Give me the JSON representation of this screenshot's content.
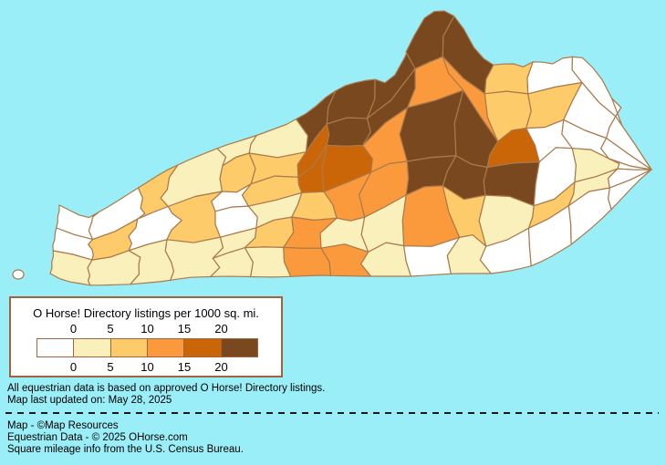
{
  "background_color": "#9AEEF7",
  "map": {
    "county_border_color": "#AA7A4C",
    "class_colors": [
      "#FFFFFF",
      "#FAF0BC",
      "#FDCB69",
      "#FB9A3C",
      "#CB6608",
      "#7A481E"
    ],
    "class_bounds": [
      "0",
      "0-5",
      "5-10",
      "10-15",
      "15-20",
      "20+"
    ],
    "density_grid_columns": [
      {
        "span": 2,
        "values": [
          0,
          0,
          1
        ]
      },
      {
        "span": 2,
        "values": [
          0,
          2,
          1
        ]
      },
      {
        "span": 2,
        "values": [
          2,
          0,
          1
        ]
      },
      {
        "span": 2,
        "values": [
          1,
          2,
          1
        ]
      },
      {
        "span": 1,
        "values": [
          1,
          2,
          0,
          0,
          1,
          1
        ]
      },
      {
        "span": 1,
        "values": [
          1,
          2,
          2,
          1,
          2,
          1
        ]
      },
      {
        "span": 1,
        "values": [
          5,
          4,
          4,
          2,
          3,
          3
        ]
      },
      {
        "span": 1,
        "values": [
          5,
          5,
          4,
          3,
          1,
          3
        ]
      },
      {
        "span": 1,
        "values": [
          5,
          5,
          3,
          3,
          1,
          1
        ]
      },
      {
        "span": 1,
        "values": [
          5,
          3,
          5,
          5,
          3,
          0
        ]
      },
      {
        "span": 1,
        "values": [
          5,
          3,
          5,
          5,
          2,
          1
        ]
      },
      {
        "span": 1,
        "values": [
          2,
          2,
          4,
          5,
          1,
          0
        ]
      },
      {
        "span": 1,
        "values": [
          0,
          2,
          0,
          0,
          2,
          0
        ]
      },
      {
        "span": 1,
        "values": [
          0,
          0,
          0,
          1,
          1,
          0
        ]
      },
      {
        "span": 1,
        "values": [
          0,
          0,
          0,
          0,
          0,
          0
        ]
      }
    ]
  },
  "legend": {
    "title": "O Horse! Directory listings per 1000 sq. mi.",
    "ticks": [
      "0",
      "5",
      "10",
      "15",
      "20"
    ],
    "border_color": "#A0643C"
  },
  "footer": {
    "note1": "All equestrian data is based on approved O Horse! Directory listings.",
    "note2": "Map last updated on: May 28, 2025",
    "credit1": "Map - ©Map Resources",
    "credit2": "Equestrian Data - © 2025 OHorse.com",
    "credit3": "Square mileage info from the U.S. Census Bureau."
  }
}
